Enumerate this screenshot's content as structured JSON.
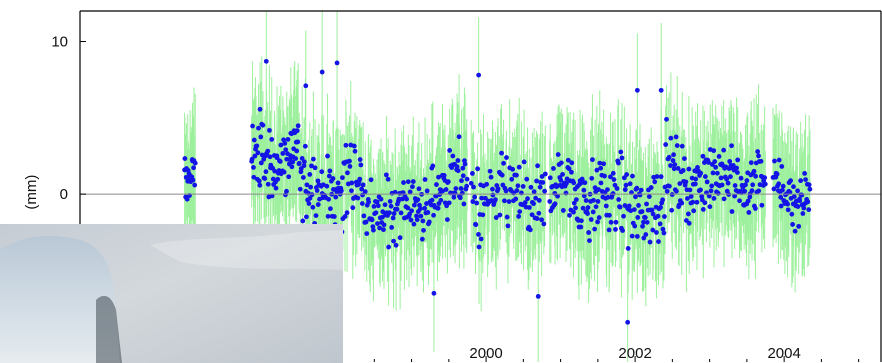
{
  "chart_data": {
    "type": "scatter",
    "title": "",
    "xlabel": "",
    "ylabel": "(mm)",
    "xlim": [
      1994.55,
      2005.3
    ],
    "ylim": [
      -11,
      12
    ],
    "x_ticks": [
      2000,
      2002,
      2004
    ],
    "x_tick_labels": [
      "2000",
      "2002",
      "2004"
    ],
    "y_ticks": [
      0,
      10
    ],
    "y_tick_labels": [
      "0",
      "10"
    ],
    "zero_line": 0,
    "grid": false,
    "legend": "none",
    "colors": {
      "points": "#1414e6",
      "error_bars": "#9df09d",
      "zero_line": "#8a8a8a",
      "frame": "#000000"
    },
    "series": [
      {
        "marker": "circle",
        "error_bars": true,
        "data_segments": [
          {
            "start": 1995.95,
            "end": 1996.1,
            "points": 22,
            "mean": 0.8,
            "spread": 1.3
          },
          {
            "start": 1996.85,
            "end": 1997.5,
            "points": 85,
            "mean": 2.4,
            "spread": 2.0
          },
          {
            "start": 1997.5,
            "end": 1998.35,
            "points": 100,
            "mean": 0.4,
            "spread": 2.2
          },
          {
            "start": 1998.35,
            "end": 1999.25,
            "points": 100,
            "mean": -0.9,
            "spread": 1.8
          },
          {
            "start": 1999.25,
            "end": 1999.75,
            "points": 60,
            "mean": 0.6,
            "spread": 1.8
          },
          {
            "start": 1999.8,
            "end": 2000.8,
            "points": 100,
            "mean": -0.3,
            "spread": 2.1
          },
          {
            "start": 2000.85,
            "end": 2001.6,
            "points": 90,
            "mean": 0.2,
            "spread": 2.0
          },
          {
            "start": 2001.6,
            "end": 2002.4,
            "points": 90,
            "mean": -0.7,
            "spread": 2.1
          },
          {
            "start": 2002.4,
            "end": 2003.0,
            "points": 70,
            "mean": 1.0,
            "spread": 1.9
          },
          {
            "start": 2003.0,
            "end": 2003.75,
            "points": 90,
            "mean": 0.9,
            "spread": 1.7
          },
          {
            "start": 2003.85,
            "end": 2004.35,
            "points": 60,
            "mean": 0.2,
            "spread": 1.4
          }
        ],
        "extreme_points": [
          {
            "x": 1997.05,
            "y": 8.7
          },
          {
            "x": 1997.58,
            "y": 7.1
          },
          {
            "x": 1997.8,
            "y": 8.0
          },
          {
            "x": 1998.0,
            "y": 8.6
          },
          {
            "x": 1999.9,
            "y": 7.8
          },
          {
            "x": 2002.03,
            "y": 6.8
          },
          {
            "x": 2002.35,
            "y": 6.8
          },
          {
            "x": 1999.3,
            "y": -6.5
          },
          {
            "x": 2000.7,
            "y": -6.7
          },
          {
            "x": 2001.9,
            "y": -8.4
          }
        ]
      }
    ]
  }
}
